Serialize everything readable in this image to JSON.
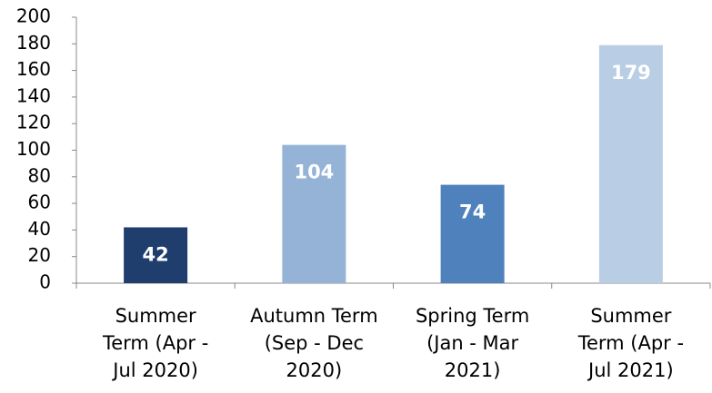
{
  "chart_data": {
    "type": "bar",
    "categories": [
      "Summer Term (Apr - Jul 2020)",
      "Autumn Term (Sep - Dec 2020)",
      "Spring Term (Jan - Mar 2021)",
      "Summer Term (Apr - Jul 2021)"
    ],
    "values": [
      42,
      104,
      74,
      179
    ],
    "colors": [
      "#1f3d6d",
      "#95b3d7",
      "#4f81bd",
      "#b9cde5"
    ],
    "ylim": [
      0,
      200
    ],
    "yticks": [
      0,
      20,
      40,
      60,
      80,
      100,
      120,
      140,
      160,
      180,
      200
    ],
    "grid": false
  }
}
